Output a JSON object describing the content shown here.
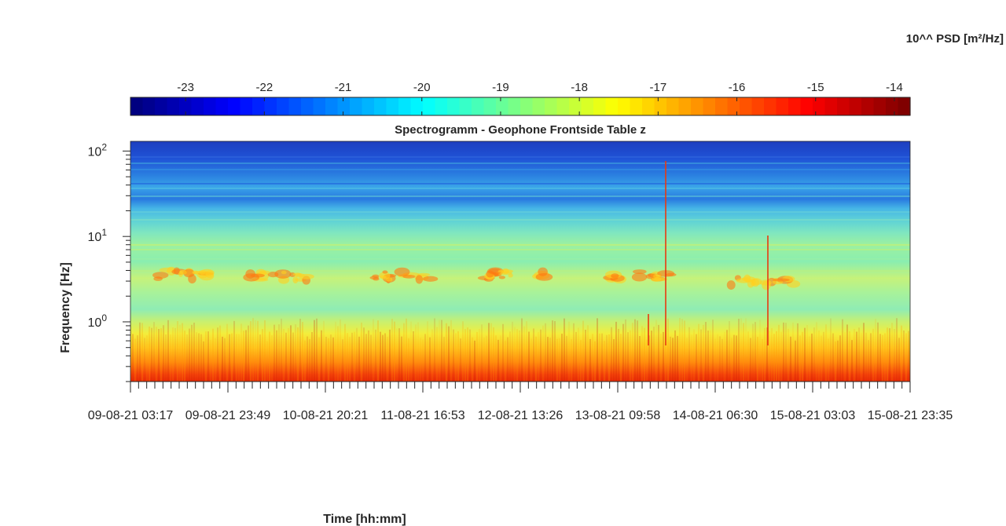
{
  "chart_data": {
    "type": "heatmap",
    "title": "Spectrogramm - Geophone Frontside Table z",
    "xlabel": "Time [hh:mm]",
    "ylabel": "Frequency [Hz]",
    "y_scale": "log",
    "ylim": [
      0.2,
      130
    ],
    "y_tick_labels": [
      {
        "base": "10",
        "exp": "2",
        "value": 100
      },
      {
        "base": "10",
        "exp": "1",
        "value": 10
      },
      {
        "base": "10",
        "exp": "0",
        "value": 1
      }
    ],
    "x_tick_labels": [
      "09-08-21 03:17",
      "09-08-21 23:49",
      "10-08-21 20:21",
      "11-08-21 16:53",
      "12-08-21 13:26",
      "13-08-21 09:58",
      "14-08-21 06:30",
      "15-08-21 03:03",
      "15-08-21 23:35"
    ],
    "colorbar": {
      "label": "10^^ PSD [m²/Hz]",
      "colormap": "jet",
      "range": [
        -23.7,
        -13.8
      ],
      "tick_labels": [
        "-23",
        "-22",
        "-21",
        "-20",
        "-19",
        "-18",
        "-17",
        "-16",
        "-15",
        "-14"
      ],
      "tick_values": [
        -23,
        -22,
        -21,
        -20,
        -19,
        -18,
        -17,
        -16,
        -15,
        -14
      ]
    },
    "grid": false
  }
}
